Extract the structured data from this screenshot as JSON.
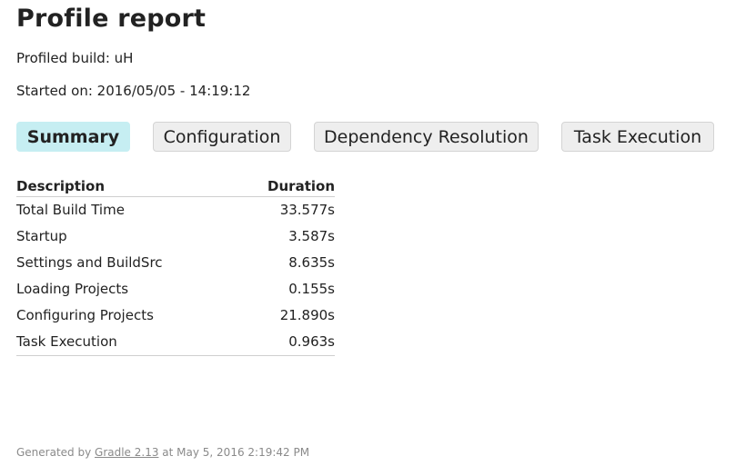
{
  "header": {
    "title": "Profile report",
    "profiled_build": "Profiled build: uH",
    "started_on": "Started on: 2016/05/05 - 14:19:12"
  },
  "tabs": [
    {
      "label": "Summary",
      "active": true
    },
    {
      "label": "Configuration",
      "active": false
    },
    {
      "label": "Dependency Resolution",
      "active": false
    },
    {
      "label": "Task Execution",
      "active": false
    }
  ],
  "summary_table": {
    "columns": [
      "Description",
      "Duration"
    ],
    "rows": [
      {
        "description": "Total Build Time",
        "duration": "33.577s"
      },
      {
        "description": "Startup",
        "duration": "3.587s"
      },
      {
        "description": "Settings and BuildSrc",
        "duration": "8.635s"
      },
      {
        "description": "Loading Projects",
        "duration": "0.155s"
      },
      {
        "description": "Configuring Projects",
        "duration": "21.890s"
      },
      {
        "description": "Task Execution",
        "duration": "0.963s"
      }
    ]
  },
  "footer": {
    "prefix": "Generated by ",
    "link_text": "Gradle 2.13",
    "suffix": " at May 5, 2016 2:19:42 PM"
  },
  "colors": {
    "active_tab": "#c6eef2",
    "inactive_tab": "#eeeeee",
    "footer_text": "#8a8a8a"
  }
}
